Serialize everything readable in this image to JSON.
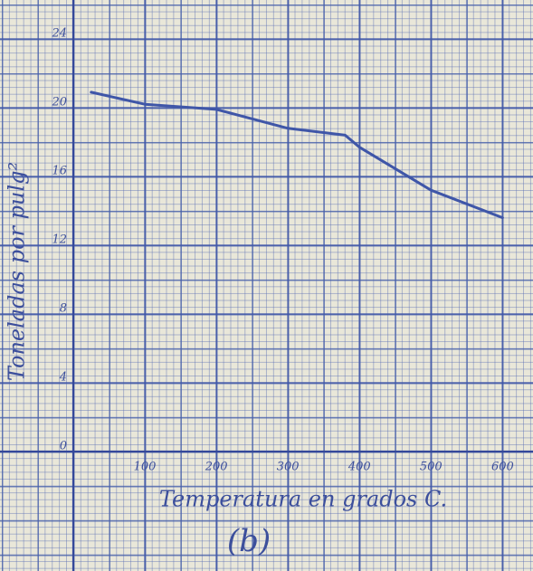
{
  "chart_data": {
    "type": "line",
    "xlabel": "Temperatura en grados C.",
    "ylabel": "Toneladas por pulg²",
    "caption": "(b)",
    "x": [
      25,
      100,
      200,
      300,
      380,
      400,
      500,
      600
    ],
    "series": [
      {
        "name": "Toneladas por pulg²",
        "color": "#3f56a8",
        "values": [
          20.9,
          20.2,
          19.9,
          18.8,
          18.4,
          17.7,
          15.2,
          13.6
        ]
      }
    ],
    "xlim": [
      0,
      640
    ],
    "ylim": [
      0,
      24
    ],
    "xticks": [
      100,
      200,
      300,
      400,
      500,
      600
    ],
    "yticks": [
      0,
      4,
      8,
      12,
      16,
      20,
      24
    ],
    "grid": true
  }
}
